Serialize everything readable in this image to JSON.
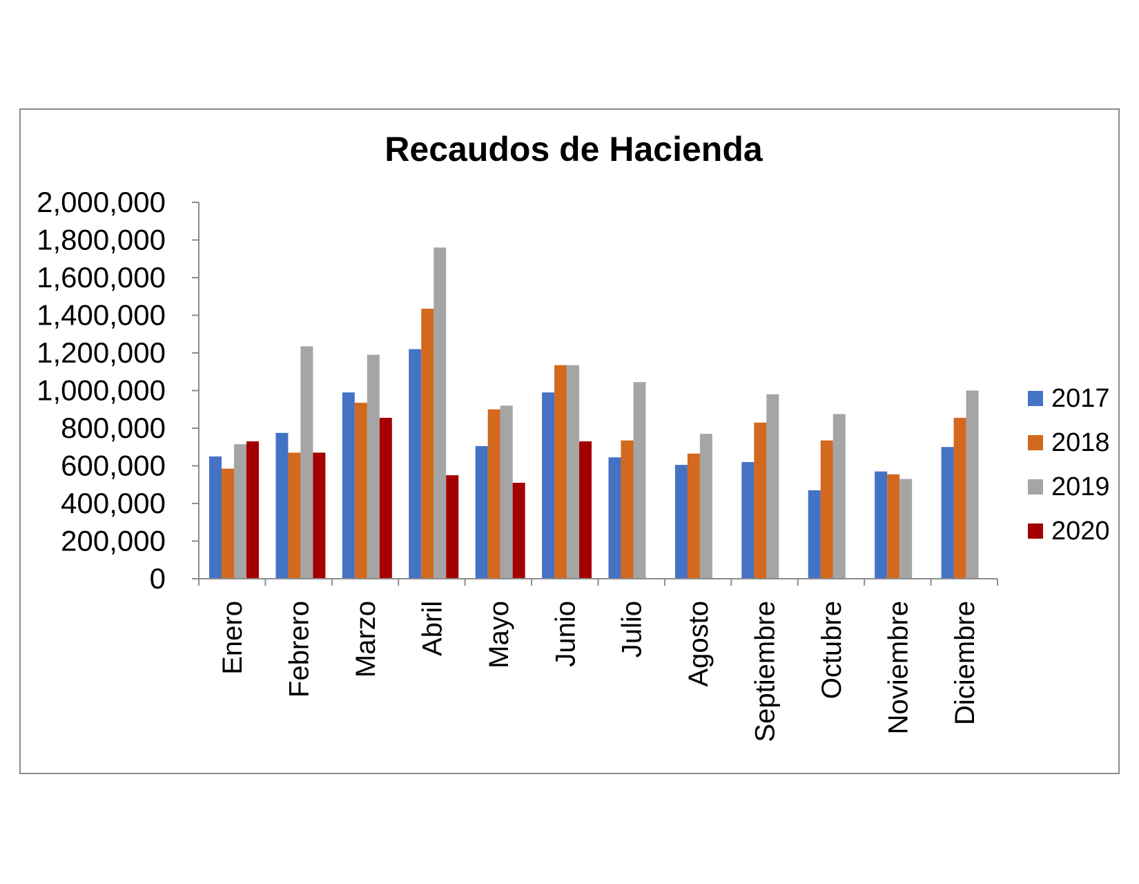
{
  "chart_data": {
    "type": "bar",
    "title": "Recaudos de Hacienda",
    "xlabel": "",
    "ylabel": "",
    "ylim": [
      0,
      2000000
    ],
    "yticks": [
      0,
      200000,
      400000,
      600000,
      800000,
      1000000,
      1200000,
      1400000,
      1600000,
      1800000,
      2000000
    ],
    "ytick_labels": [
      "0",
      "200,000",
      "400,000",
      "600,000",
      "800,000",
      "1,000,000",
      "1,200,000",
      "1,400,000",
      "1,600,000",
      "1,800,000",
      "2,000,000"
    ],
    "categories": [
      "Enero",
      "Febrero",
      "Marzo",
      "Abril",
      "Mayo",
      "Junio",
      "Julio",
      "Agosto",
      "Septiembre",
      "Octubre",
      "Noviembre",
      "Diciembre"
    ],
    "series": [
      {
        "name": "2017",
        "color": "#4472C4",
        "values": [
          650000,
          775000,
          990000,
          1220000,
          705000,
          990000,
          645000,
          605000,
          620000,
          470000,
          570000,
          700000
        ]
      },
      {
        "name": "2018",
        "color": "#D2691E",
        "values": [
          585000,
          670000,
          935000,
          1435000,
          900000,
          1135000,
          735000,
          665000,
          830000,
          735000,
          555000,
          855000
        ]
      },
      {
        "name": "2019",
        "color": "#A5A5A5",
        "values": [
          715000,
          1235000,
          1190000,
          1760000,
          920000,
          1135000,
          1045000,
          770000,
          980000,
          875000,
          530000,
          1000000
        ]
      },
      {
        "name": "2020",
        "color": "#A50000",
        "values": [
          730000,
          670000,
          855000,
          550000,
          510000,
          730000,
          null,
          null,
          null,
          null,
          null,
          null
        ]
      }
    ],
    "grid": false,
    "legend_position": "right"
  }
}
